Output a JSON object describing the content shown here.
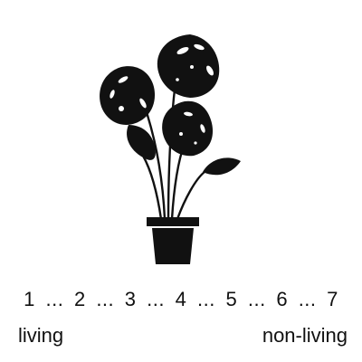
{
  "image": {
    "subject_icon": "potted-monstera-plant-icon",
    "colors": {
      "background": "#ffffff",
      "silhouette": "#111111",
      "text": "#111111"
    }
  },
  "scale": {
    "points": [
      "1",
      "2",
      "3",
      "4",
      "5",
      "6",
      "7"
    ],
    "separator": "...",
    "left_label": "living",
    "right_label": "non-living"
  }
}
